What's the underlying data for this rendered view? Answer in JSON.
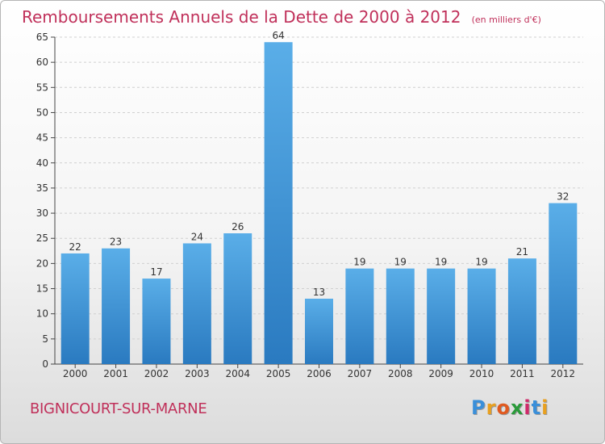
{
  "chart_data": {
    "type": "bar",
    "title": "Remboursements Annuels de la Dette de 2000 à 2012",
    "subtitle": "(en milliers d'€)",
    "categories": [
      "2000",
      "2001",
      "2002",
      "2003",
      "2004",
      "2005",
      "2006",
      "2007",
      "2008",
      "2009",
      "2010",
      "2011",
      "2012"
    ],
    "values": [
      22,
      23,
      17,
      24,
      26,
      64,
      13,
      19,
      19,
      19,
      19,
      21,
      32
    ],
    "ylim": [
      0,
      65
    ],
    "yticks": [
      0,
      5,
      10,
      15,
      20,
      25,
      30,
      35,
      40,
      45,
      50,
      55,
      60,
      65
    ],
    "grid": true,
    "xlabel": "",
    "ylabel": "",
    "bar_color_top": "#5aaee8",
    "bar_color_bottom": "#2a7ac0"
  },
  "commune": "BIGNICOURT-SUR-MARNE",
  "logo": {
    "letters": [
      "P",
      "r",
      "o",
      "x",
      "i",
      "t",
      "i"
    ],
    "colors": [
      "#3a8fd9",
      "#e8a020",
      "#e05a20",
      "#2a9a3a",
      "#d02a6a",
      "#3a8fd9",
      "#e8a020"
    ]
  },
  "colors": {
    "title": "#c0305a",
    "text": "#333333"
  }
}
